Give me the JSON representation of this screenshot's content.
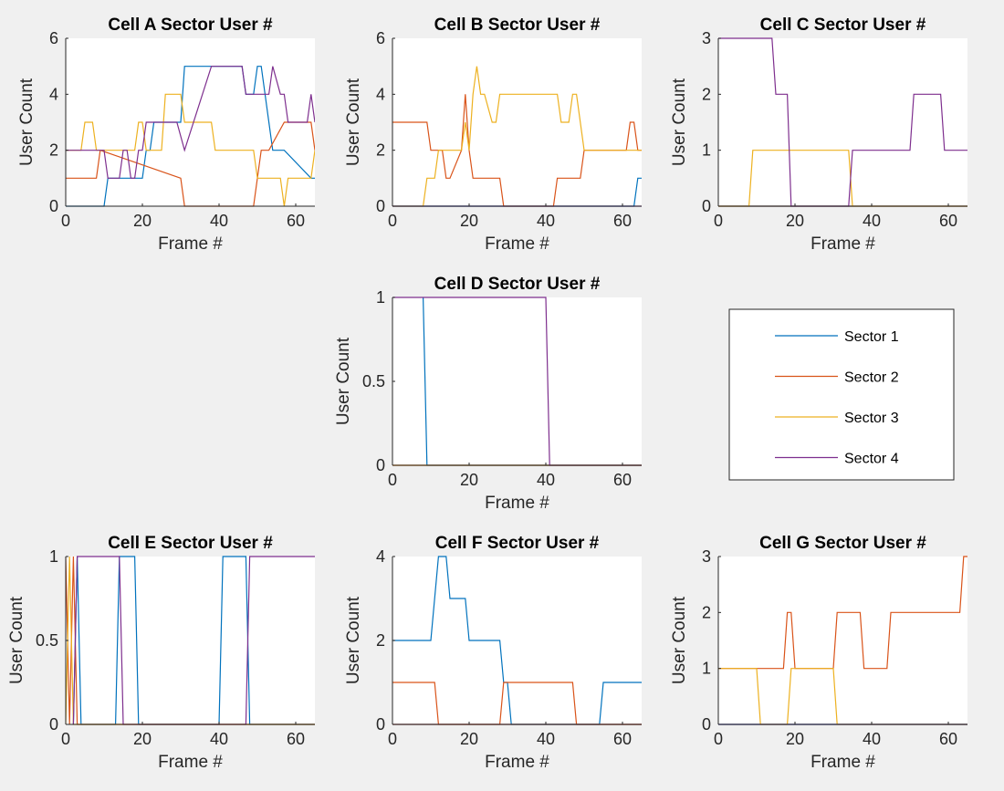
{
  "figure": {
    "legend": {
      "placement": "center",
      "entries": [
        "Sector 1",
        "Sector 2",
        "Sector 3",
        "Sector 4"
      ]
    },
    "colors": {
      "Sector 1": "#0072bd",
      "Sector 2": "#d95319",
      "Sector 3": "#edb120",
      "Sector 4": "#7e2f8e"
    }
  },
  "chart_data": [
    {
      "id": "A",
      "type": "line",
      "title": "Cell A Sector User #",
      "xlabel": "Frame #",
      "ylabel": "User Count",
      "xlim": [
        0,
        65
      ],
      "ylim": [
        0,
        6
      ],
      "xticks": [
        0,
        20,
        40,
        60
      ],
      "yticks": [
        0,
        2,
        4,
        6
      ],
      "series": [
        {
          "name": "Sector 1",
          "x": [
            0,
            10,
            11,
            14,
            17,
            20,
            21,
            22,
            23,
            30,
            31,
            46,
            47,
            49,
            50,
            51,
            53,
            54,
            56,
            57,
            64,
            65
          ],
          "y": [
            0,
            0,
            1,
            1,
            1,
            1,
            2,
            2,
            3,
            3,
            5,
            5,
            4,
            4,
            5,
            5,
            3,
            2,
            2,
            2,
            1,
            1
          ]
        },
        {
          "name": "Sector 2",
          "x": [
            0,
            8,
            9,
            30,
            31,
            49,
            50,
            51,
            53,
            57,
            58,
            64,
            65
          ],
          "y": [
            1,
            1,
            2,
            1,
            0,
            0,
            1,
            2,
            2,
            3,
            3,
            3,
            2
          ]
        },
        {
          "name": "Sector 3",
          "x": [
            0,
            4,
            5,
            7,
            8,
            10,
            18,
            19,
            20,
            21,
            25,
            26,
            29,
            30,
            31,
            38,
            39,
            49,
            50,
            55,
            56,
            57,
            58,
            64,
            65
          ],
          "y": [
            2,
            2,
            3,
            3,
            2,
            2,
            2,
            3,
            3,
            2,
            2,
            4,
            4,
            4,
            3,
            3,
            2,
            2,
            1,
            1,
            1,
            0,
            1,
            1,
            2
          ]
        },
        {
          "name": "Sector 4",
          "x": [
            0,
            10,
            11,
            14,
            15,
            16,
            17,
            18,
            19,
            20,
            21,
            28,
            29,
            31,
            38,
            39,
            46,
            47,
            53,
            54,
            56,
            57,
            58,
            63,
            64,
            65
          ],
          "y": [
            2,
            2,
            1,
            1,
            2,
            2,
            1,
            1,
            2,
            2,
            3,
            3,
            3,
            2,
            5,
            5,
            5,
            4,
            4,
            5,
            4,
            4,
            3,
            3,
            4,
            3
          ]
        }
      ]
    },
    {
      "id": "B",
      "type": "line",
      "title": "Cell B Sector User #",
      "xlabel": "Frame #",
      "ylabel": "User Count",
      "xlim": [
        0,
        65
      ],
      "ylim": [
        0,
        6
      ],
      "xticks": [
        0,
        20,
        40,
        60
      ],
      "yticks": [
        0,
        2,
        4,
        6
      ],
      "series": [
        {
          "name": "Sector 1",
          "x": [
            0,
            61,
            62,
            63,
            64,
            65
          ],
          "y": [
            0,
            0,
            0,
            0,
            1,
            1
          ]
        },
        {
          "name": "Sector 2",
          "x": [
            0,
            9,
            10,
            13,
            14,
            15,
            18,
            19,
            20,
            21,
            28,
            29,
            42,
            43,
            49,
            50,
            61,
            62,
            63,
            64,
            65
          ],
          "y": [
            3,
            3,
            2,
            2,
            1,
            1,
            2,
            4,
            2,
            1,
            1,
            0,
            0,
            1,
            1,
            2,
            2,
            3,
            3,
            2,
            2
          ]
        },
        {
          "name": "Sector 3",
          "x": [
            0,
            8,
            9,
            11,
            12,
            13,
            18,
            19,
            20,
            21,
            22,
            23,
            24,
            26,
            27,
            28,
            43,
            44,
            46,
            47,
            48,
            49,
            50,
            65
          ],
          "y": [
            0,
            0,
            1,
            1,
            2,
            2,
            2,
            3,
            2,
            4,
            5,
            4,
            4,
            3,
            3,
            4,
            4,
            3,
            3,
            4,
            4,
            3,
            2,
            2
          ]
        },
        {
          "name": "Sector 4",
          "x": [
            0,
            65
          ],
          "y": [
            0,
            0
          ]
        }
      ]
    },
    {
      "id": "C",
      "type": "line",
      "title": "Cell C Sector User #",
      "xlabel": "Frame #",
      "ylabel": "User Count",
      "xlim": [
        0,
        65
      ],
      "ylim": [
        0,
        3
      ],
      "xticks": [
        0,
        20,
        40,
        60
      ],
      "yticks": [
        0,
        1,
        2,
        3
      ],
      "series": [
        {
          "name": "Sector 1",
          "x": [
            0,
            65
          ],
          "y": [
            0,
            0
          ]
        },
        {
          "name": "Sector 2",
          "x": [
            0,
            65
          ],
          "y": [
            0,
            0
          ]
        },
        {
          "name": "Sector 3",
          "x": [
            0,
            8,
            9,
            34,
            35,
            65
          ],
          "y": [
            0,
            0,
            1,
            1,
            0,
            0
          ]
        },
        {
          "name": "Sector 4",
          "x": [
            0,
            14,
            15,
            18,
            19,
            34,
            35,
            50,
            51,
            58,
            59,
            65
          ],
          "y": [
            3,
            3,
            2,
            2,
            0,
            0,
            1,
            1,
            2,
            2,
            1,
            1
          ]
        }
      ]
    },
    {
      "id": "D",
      "type": "line",
      "title": "Cell D Sector User #",
      "xlabel": "Frame #",
      "ylabel": "User Count",
      "xlim": [
        0,
        65
      ],
      "ylim": [
        0,
        1
      ],
      "xticks": [
        0,
        20,
        40,
        60
      ],
      "yticks": [
        0,
        0.5,
        1
      ],
      "series": [
        {
          "name": "Sector 1",
          "x": [
            8,
            9,
            65
          ],
          "y": [
            1,
            0,
            0
          ]
        },
        {
          "name": "Sector 2",
          "x": [
            0,
            65
          ],
          "y": [
            0,
            0
          ]
        },
        {
          "name": "Sector 3",
          "x": [
            0,
            65
          ],
          "y": [
            0,
            0
          ]
        },
        {
          "name": "Sector 4",
          "x": [
            0,
            40,
            41,
            65
          ],
          "y": [
            1,
            1,
            0,
            0
          ]
        }
      ]
    },
    {
      "id": "E",
      "type": "line",
      "title": "Cell E Sector User #",
      "xlabel": "Frame #",
      "ylabel": "User Count",
      "xlim": [
        0,
        65
      ],
      "ylim": [
        0,
        1
      ],
      "xticks": [
        0,
        20,
        40,
        60
      ],
      "yticks": [
        0,
        0.5,
        1
      ],
      "series": [
        {
          "name": "Sector 1",
          "x": [
            2,
            3,
            4,
            13,
            14,
            15,
            18,
            19,
            40,
            41,
            47,
            48,
            65
          ],
          "y": [
            0,
            1,
            0,
            0,
            1,
            1,
            1,
            0,
            0,
            1,
            1,
            0,
            0
          ]
        },
        {
          "name": "Sector 2",
          "x": [
            0,
            1,
            2,
            3,
            65
          ],
          "y": [
            1,
            0,
            1,
            0,
            0
          ]
        },
        {
          "name": "Sector 3",
          "x": [
            0,
            1,
            2,
            65
          ],
          "y": [
            0,
            1,
            0,
            0
          ]
        },
        {
          "name": "Sector 4",
          "x": [
            2,
            3,
            14,
            15,
            47,
            48,
            65
          ],
          "y": [
            0,
            1,
            1,
            0,
            0,
            1,
            1
          ]
        }
      ]
    },
    {
      "id": "F",
      "type": "line",
      "title": "Cell F Sector User #",
      "xlabel": "Frame #",
      "ylabel": "User Count",
      "xlim": [
        0,
        65
      ],
      "ylim": [
        0,
        4
      ],
      "xticks": [
        0,
        20,
        40,
        60
      ],
      "yticks": [
        0,
        2,
        4
      ],
      "series": [
        {
          "name": "Sector 1",
          "x": [
            0,
            10,
            11,
            12,
            14,
            15,
            19,
            20,
            28,
            29,
            30,
            31,
            54,
            55,
            65
          ],
          "y": [
            2,
            2,
            3,
            4,
            4,
            3,
            3,
            2,
            2,
            1,
            1,
            0,
            0,
            1,
            1
          ]
        },
        {
          "name": "Sector 2",
          "x": [
            0,
            11,
            12,
            28,
            29,
            47,
            48,
            65
          ],
          "y": [
            1,
            1,
            0,
            0,
            1,
            1,
            0,
            0
          ]
        },
        {
          "name": "Sector 3",
          "x": [
            0,
            65
          ],
          "y": [
            0,
            0
          ]
        },
        {
          "name": "Sector 4",
          "x": [
            0,
            65
          ],
          "y": [
            0,
            0
          ]
        }
      ]
    },
    {
      "id": "G",
      "type": "line",
      "title": "Cell G Sector User #",
      "xlabel": "Frame #",
      "ylabel": "User Count",
      "xlim": [
        0,
        65
      ],
      "ylim": [
        0,
        3
      ],
      "xticks": [
        0,
        20,
        40,
        60
      ],
      "yticks": [
        0,
        1,
        2,
        3
      ],
      "series": [
        {
          "name": "Sector 1",
          "x": [
            0,
            65
          ],
          "y": [
            0,
            0
          ]
        },
        {
          "name": "Sector 2",
          "x": [
            0,
            17,
            18,
            19,
            20,
            30,
            31,
            37,
            38,
            44,
            45,
            63,
            64,
            65
          ],
          "y": [
            1,
            1,
            2,
            2,
            1,
            1,
            2,
            2,
            1,
            1,
            2,
            2,
            3,
            3
          ]
        },
        {
          "name": "Sector 3",
          "x": [
            0,
            10,
            11,
            18,
            19,
            30,
            31,
            65
          ],
          "y": [
            1,
            1,
            0,
            0,
            1,
            1,
            0,
            0
          ]
        },
        {
          "name": "Sector 4",
          "x": [
            0,
            65
          ],
          "y": [
            0,
            0
          ]
        }
      ]
    }
  ]
}
